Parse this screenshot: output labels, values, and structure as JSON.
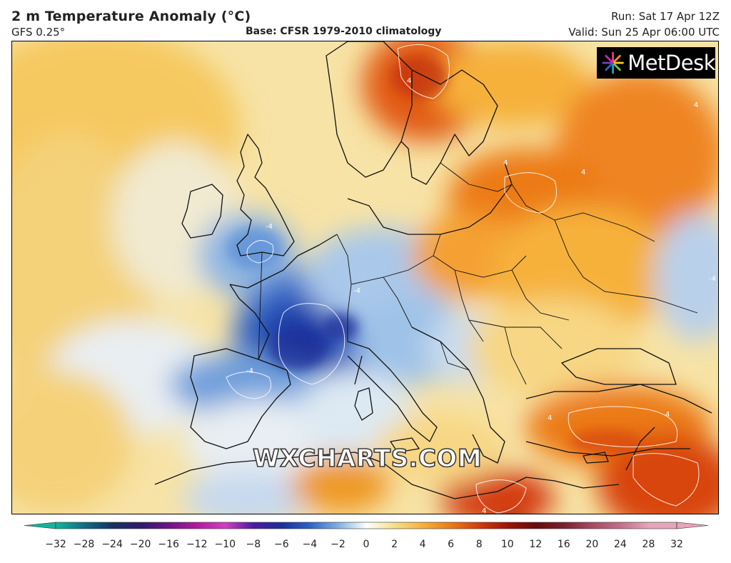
{
  "header": {
    "title": "2 m Temperature Anomaly (°C)",
    "model": "GFS 0.25°",
    "base": "Base: CFSR 1979-2010 climatology",
    "run": "Run: Sat 17 Apr 12Z",
    "valid": "Valid: Sun 25 Apr 06:00 UTC"
  },
  "logo": {
    "text": "MetDesk",
    "icon": "metdesk-starburst-icon"
  },
  "watermark": "WXCHARTS.COM",
  "contour_labels": [
    "-4",
    "4"
  ],
  "colorbar": {
    "ticks": [
      "−32",
      "−28",
      "−24",
      "−20",
      "−16",
      "−12",
      "−10",
      "−8",
      "−6",
      "−4",
      "−2",
      "0",
      "2",
      "4",
      "6",
      "8",
      "10",
      "12",
      "16",
      "20",
      "24",
      "28",
      "32"
    ],
    "colors": [
      "#12b59a",
      "#0f6f83",
      "#14325f",
      "#301a6a",
      "#6e1488",
      "#b31a9e",
      "#d23fc0",
      "#4a1aa0",
      "#1a2f9a",
      "#2e62c6",
      "#7fb0e0",
      "#ffffff",
      "#f4e08a",
      "#f6b13a",
      "#ec7a14",
      "#d33a0c",
      "#9e1408",
      "#6a0a0a",
      "#7a2030",
      "#a84a63",
      "#c07088",
      "#e5a6b8"
    ]
  }
}
